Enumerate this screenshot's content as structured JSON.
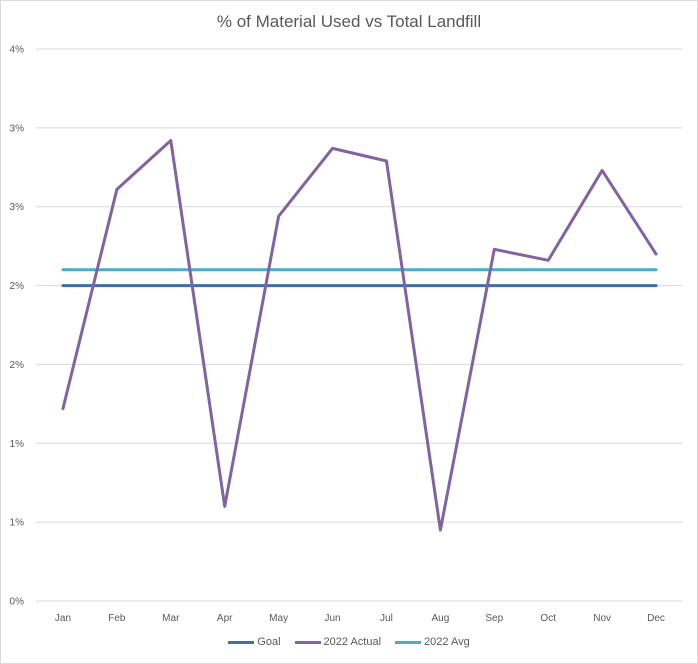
{
  "chart_data": {
    "type": "line",
    "title": "% of Material Used vs Total Landfill",
    "xlabel": "",
    "ylabel": "",
    "categories": [
      "Jan",
      "Feb",
      "Mar",
      "Apr",
      "May",
      "Jun",
      "Jul",
      "Aug",
      "Sep",
      "Oct",
      "Nov",
      "Dec"
    ],
    "ylim": [
      0,
      3.5
    ],
    "y_ticks": [
      0,
      0.5,
      1.0,
      1.5,
      2.0,
      2.5,
      3.0,
      3.5
    ],
    "y_tick_labels": [
      "0%",
      "1%",
      "1%",
      "2%",
      "2%",
      "3%",
      "3%",
      "4%"
    ],
    "grid": true,
    "legend_position": "bottom",
    "series": [
      {
        "name": "Goal",
        "color": "#3e6fa8",
        "values": [
          2.0,
          2.0,
          2.0,
          2.0,
          2.0,
          2.0,
          2.0,
          2.0,
          2.0,
          2.0,
          2.0,
          2.0
        ]
      },
      {
        "name": "2022 Actual",
        "color": "#8064a2",
        "values": [
          1.22,
          2.61,
          2.92,
          0.6,
          2.44,
          2.87,
          2.79,
          0.45,
          2.23,
          2.16,
          2.73,
          2.2
        ]
      },
      {
        "name": "2022 Avg",
        "color": "#4bacc6",
        "values": [
          2.1,
          2.1,
          2.1,
          2.1,
          2.1,
          2.1,
          2.1,
          2.1,
          2.1,
          2.1,
          2.1,
          2.1
        ]
      }
    ]
  }
}
